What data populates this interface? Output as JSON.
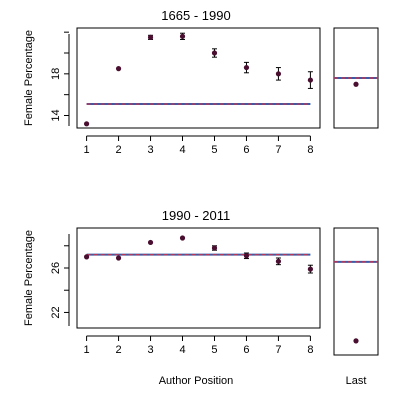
{
  "chart_data": [
    {
      "type": "scatter",
      "title": "1665 - 1990",
      "ylabel": "Female Percentage",
      "x": [
        1,
        2,
        3,
        4,
        5,
        6,
        7,
        8
      ],
      "y": [
        13.2,
        18.5,
        21.5,
        21.6,
        20.0,
        18.6,
        18.0,
        17.4
      ],
      "error": [
        0.05,
        0.1,
        0.2,
        0.3,
        0.4,
        0.5,
        0.6,
        0.8
      ],
      "reference_line": 15.1,
      "yticks": [
        14,
        18
      ],
      "xticks": [
        1,
        2,
        3,
        4,
        5,
        6,
        7,
        8
      ],
      "xlim": [
        0.7,
        8.3
      ],
      "ylim": [
        12.8,
        22.4
      ],
      "last": {
        "y": 17.0,
        "reference_line": 17.6
      }
    },
    {
      "type": "scatter",
      "title": "1990 - 2011",
      "ylabel": "Female Percentage",
      "x": [
        1,
        2,
        3,
        4,
        5,
        6,
        7,
        8
      ],
      "y": [
        27.0,
        26.9,
        28.3,
        28.7,
        27.8,
        27.1,
        26.6,
        25.9
      ],
      "error": [
        0.05,
        0.1,
        0.1,
        0.15,
        0.2,
        0.25,
        0.3,
        0.35
      ],
      "reference_line": 27.2,
      "yticks": [
        22,
        26
      ],
      "xticks": [
        1,
        2,
        3,
        4,
        5,
        6,
        7,
        8
      ],
      "xlim": [
        0.7,
        8.3
      ],
      "ylim": [
        20.6,
        29.6
      ],
      "last": {
        "y": 21.6,
        "reference_line": 27.2
      }
    }
  ],
  "labels": {
    "xlabel": "Author Position",
    "last_label": "Last"
  },
  "colors": {
    "point": "#4a0f30",
    "reference_line_blue": "#3b5ba5",
    "reference_line_red": "#d0304a",
    "axis": "#000000"
  }
}
